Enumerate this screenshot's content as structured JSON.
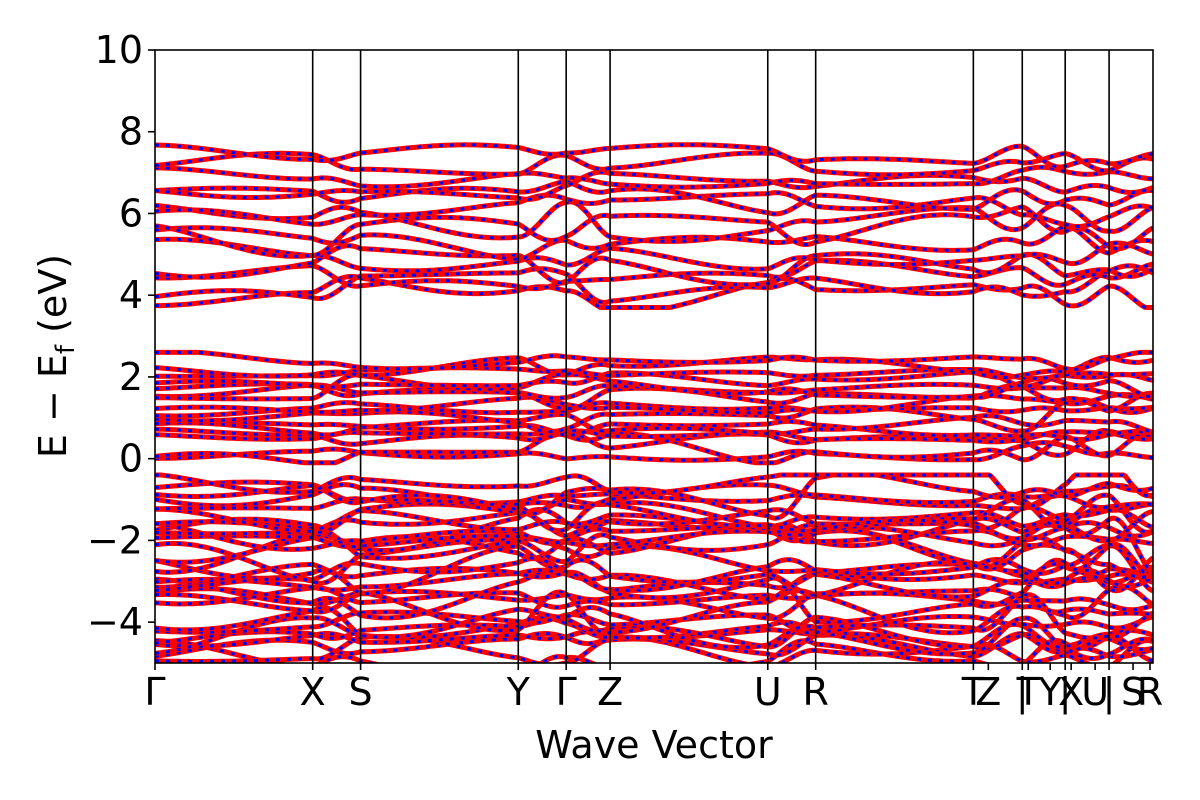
{
  "chart_data": {
    "type": "line",
    "title": "",
    "xlabel": "Wave Vector",
    "ylabel": "E − E_f (eV)",
    "ylabel_main": "E − E",
    "ylabel_sub": "f",
    "ylabel_tail": " (eV)",
    "ylim": [
      -5,
      10
    ],
    "y_ticks": [
      -4,
      -2,
      0,
      2,
      4,
      6,
      8,
      10
    ],
    "y_tick_labels": [
      "−4",
      "−2",
      "0",
      "2",
      "4",
      "6",
      "8",
      "10"
    ],
    "x_range": [
      0,
      1
    ],
    "high_symmetry_points": [
      {
        "label": "Γ",
        "x": 0.0
      },
      {
        "label": "X",
        "x": 0.158
      },
      {
        "label": "S",
        "x": 0.206
      },
      {
        "label": "Y",
        "x": 0.364
      },
      {
        "label": "Γ",
        "x": 0.412
      },
      {
        "label": "Z",
        "x": 0.456
      },
      {
        "label": "U",
        "x": 0.614
      },
      {
        "label": "R",
        "x": 0.662
      },
      {
        "label": "T",
        "x": 0.82
      },
      {
        "label": "Z",
        "x": 0.835
      },
      {
        "label": "|",
        "x": 0.869
      },
      {
        "label": "T",
        "x": 0.875
      },
      {
        "label": "Y",
        "x": 0.897
      },
      {
        "label": "|",
        "x": 0.912
      },
      {
        "label": "X",
        "x": 0.918
      },
      {
        "label": "U",
        "x": 0.942
      },
      {
        "label": "|",
        "x": 0.956
      },
      {
        "label": "S",
        "x": 0.98
      },
      {
        "label": "R",
        "x": 0.997
      }
    ],
    "vertical_lines_x": [
      0.158,
      0.206,
      0.364,
      0.412,
      0.456,
      0.614,
      0.662,
      0.82,
      0.869,
      0.912,
      0.956
    ],
    "band_regions": {
      "conduction_upper": [
        3.8,
        7.6
      ],
      "conduction_lower": [
        0.0,
        2.5
      ],
      "valence": [
        -5.0,
        -0.5
      ]
    },
    "series": [
      {
        "name": "",
        "color": "#ff0000",
        "style": "solid"
      },
      {
        "name": "",
        "color": "#0000ff",
        "style": "dashed"
      }
    ],
    "grid": false,
    "legend": "none"
  }
}
